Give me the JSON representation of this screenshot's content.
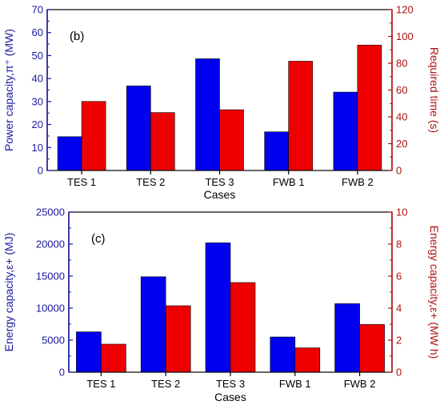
{
  "chart_data": [
    {
      "type": "bar",
      "panel_label": "(b)",
      "categories": [
        "TES 1",
        "TES 2",
        "TES 3",
        "FWB 1",
        "FWB 2"
      ],
      "xlabel": "Cases",
      "left_axis": {
        "label": "Power capacity,π⁺ (MW)",
        "ylim": [
          0,
          70
        ],
        "ticks": [
          0,
          10,
          20,
          30,
          40,
          50,
          60,
          70
        ],
        "color": "#1a1aa0"
      },
      "right_axis": {
        "label": "Required time (s)",
        "ylim": [
          0,
          120
        ],
        "ticks": [
          0,
          20,
          40,
          60,
          80,
          100,
          120
        ],
        "color": "#b01010"
      },
      "series": [
        {
          "axis": "left",
          "color": "#0000ee",
          "values": [
            14.7,
            36.8,
            48.6,
            16.8,
            34.1
          ]
        },
        {
          "axis": "right",
          "color": "#ee0000",
          "values": [
            51.5,
            43.2,
            45.3,
            81.5,
            93.5
          ]
        }
      ]
    },
    {
      "type": "bar",
      "panel_label": "(c)",
      "categories": [
        "TES 1",
        "TES 2",
        "TES 3",
        "FWB 1",
        "FWB 2"
      ],
      "xlabel": "Cases",
      "left_axis": {
        "label": "Energy capacity,ε+ (MJ)",
        "ylim": [
          0,
          25000
        ],
        "ticks": [
          0,
          5000,
          10000,
          15000,
          20000,
          25000
        ],
        "color": "#1a1aa0"
      },
      "right_axis": {
        "label": "Energy capacity,ε+ (MW h)",
        "ylim": [
          0,
          10
        ],
        "ticks": [
          0,
          2,
          4,
          6,
          8,
          10
        ],
        "color": "#b01010"
      },
      "series": [
        {
          "axis": "left",
          "color": "#0000ee",
          "values": [
            6300,
            14900,
            20200,
            5500,
            10700
          ]
        },
        {
          "axis": "right",
          "color": "#ee0000",
          "values": [
            1.75,
            4.15,
            5.6,
            1.52,
            2.98
          ]
        }
      ]
    }
  ]
}
